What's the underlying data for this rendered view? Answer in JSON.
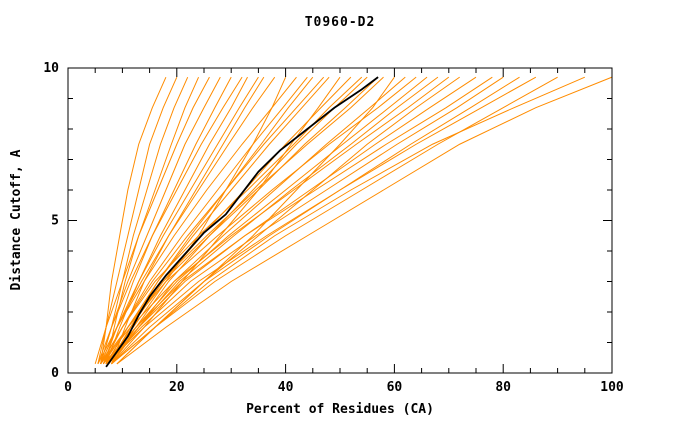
{
  "title": "T0960-D2",
  "axes": {
    "xlabel": "Percent of Residues (CA)",
    "ylabel": "Distance Cutoff, A",
    "x_ticks": [
      0,
      20,
      40,
      60,
      80,
      100
    ],
    "y_ticks": [
      0,
      5,
      10
    ],
    "x_minor_step": 5,
    "y_minor_step": 1
  },
  "colors": {
    "model_line": "#ff8c00",
    "highlight_line": "#000000",
    "axis": "#000000",
    "background": "#ffffff"
  },
  "chart_data": {
    "type": "line",
    "title": "T0960-D2",
    "xlabel": "Percent of Residues (CA)",
    "ylabel": "Distance Cutoff, A",
    "xlim": [
      0,
      100
    ],
    "ylim": [
      0,
      10
    ],
    "grid": false,
    "legend": "none",
    "description": "Cumulative accuracy curves: percent of CA residues (x) within a distance cutoff in Angstroms (y); many orange model curves and one black highlighted model curve",
    "y_levels": [
      0.3,
      1.5,
      3,
      4.5,
      6,
      7.5,
      8.7,
      9.7
    ],
    "orange_series_x": [
      [
        6,
        7,
        8,
        9.5,
        11,
        13,
        15.5,
        18
      ],
      [
        5.5,
        7,
        9,
        11,
        13,
        15,
        17.5,
        20
      ],
      [
        6,
        8,
        10,
        12,
        14.5,
        17,
        19.5,
        22
      ],
      [
        7,
        8.5,
        10.5,
        13,
        16,
        19,
        21.5,
        24
      ],
      [
        5,
        7,
        10,
        13,
        16.5,
        20,
        23,
        26
      ],
      [
        6,
        8,
        11,
        14.5,
        18,
        21.5,
        25,
        28
      ],
      [
        6.5,
        9,
        12,
        15.5,
        19.5,
        23.5,
        27,
        30
      ],
      [
        5.5,
        8,
        11.5,
        15.5,
        20,
        24.5,
        28.5,
        32
      ],
      [
        7,
        9.5,
        13,
        17,
        21.5,
        26,
        30,
        33
      ],
      [
        6,
        9,
        13,
        17.5,
        22.5,
        27.5,
        31.5,
        35
      ],
      [
        8,
        10.5,
        14,
        18.5,
        23.5,
        28.5,
        32.5,
        36
      ],
      [
        6,
        9,
        13.5,
        18.5,
        24,
        29.5,
        34,
        38
      ],
      [
        7,
        12,
        18,
        24,
        29,
        34,
        37.5,
        40
      ],
      [
        5.5,
        9,
        14,
        19.5,
        25.5,
        32,
        37.5,
        42
      ],
      [
        6.5,
        10,
        15,
        21,
        27.5,
        34,
        39.5,
        44
      ],
      [
        8,
        11.5,
        16.5,
        22.5,
        29,
        35.5,
        40.5,
        45
      ],
      [
        6,
        10,
        15.5,
        22,
        29,
        36,
        42,
        47
      ],
      [
        7,
        11,
        16.5,
        23,
        30,
        37,
        43,
        48
      ],
      [
        8,
        14,
        21,
        28,
        35,
        41,
        46,
        50
      ],
      [
        7.5,
        11.5,
        17.5,
        24.5,
        32.5,
        40,
        46.5,
        52
      ],
      [
        6,
        10,
        16,
        24,
        33,
        41.5,
        48,
        54
      ],
      [
        8,
        12.5,
        18.5,
        26,
        34,
        42,
        49,
        55
      ],
      [
        7,
        11,
        17.5,
        26,
        35,
        43.5,
        51,
        57
      ],
      [
        6.5,
        11,
        17,
        25.5,
        34.5,
        44,
        52,
        58
      ],
      [
        9,
        16,
        25,
        34,
        42,
        50,
        56,
        60
      ],
      [
        8,
        13,
        19.5,
        28.5,
        38,
        47.5,
        55.5,
        62
      ],
      [
        6,
        11,
        18,
        27.5,
        37.5,
        48,
        57,
        64
      ],
      [
        7,
        12.5,
        20,
        29.5,
        40,
        50.5,
        59,
        66
      ],
      [
        7.5,
        13,
        20.5,
        30.5,
        41,
        52,
        60.5,
        68
      ],
      [
        6,
        11.5,
        19.5,
        30,
        41.5,
        53,
        62.5,
        70
      ],
      [
        9,
        16,
        25,
        35,
        45,
        55,
        64,
        72
      ],
      [
        7,
        13,
        21.5,
        32.5,
        44.5,
        56.5,
        66.5,
        75
      ],
      [
        6.5,
        12.5,
        21,
        32.5,
        45.5,
        58.5,
        69.5,
        78
      ],
      [
        7,
        13.5,
        22.5,
        34.5,
        47.5,
        60.5,
        71.5,
        80
      ],
      [
        8,
        15,
        25,
        37,
        50,
        63,
        74,
        83
      ],
      [
        7,
        14,
        24,
        36.5,
        50,
        64,
        76,
        86
      ],
      [
        8,
        16,
        27,
        40,
        54,
        68,
        80,
        90
      ],
      [
        8,
        16,
        26,
        38,
        52,
        67,
        82,
        95
      ],
      [
        9,
        18,
        30,
        44,
        58,
        72,
        86,
        100
      ]
    ],
    "black_series": {
      "y": [
        0.2,
        0.7,
        1.2,
        1.9,
        2.5,
        3.2,
        4.0,
        4.6,
        5.2,
        5.9,
        6.6,
        7.3,
        8.0,
        8.7,
        9.3,
        9.7
      ],
      "x": [
        7,
        9,
        11,
        13,
        15,
        18,
        22,
        25,
        29,
        32,
        35,
        39,
        44,
        49,
        54,
        57
      ]
    }
  }
}
